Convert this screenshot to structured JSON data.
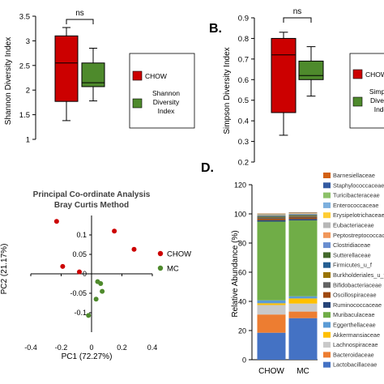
{
  "panel_labels": {
    "b": "B.",
    "d": "D."
  },
  "chart_data": [
    {
      "type": "box",
      "panel": "A",
      "ylabel": "Shannon Diversity Index",
      "ylim": [
        1,
        3.5
      ],
      "yticks": [
        "1",
        "1.5",
        "2",
        "2.5",
        "3",
        "3.5"
      ],
      "significance": "ns",
      "series": [
        {
          "name": "CHOW",
          "color": "#cc0000",
          "min": 1.38,
          "q1": 1.77,
          "median": 2.55,
          "q3": 3.1,
          "max": 3.27
        },
        {
          "name": "Shannon Diversity Index",
          "color": "#4e8a2c",
          "min": 1.78,
          "q1": 2.07,
          "median": 2.15,
          "q3": 2.55,
          "max": 2.85
        }
      ],
      "legend": [
        "CHOW",
        "Shannon",
        "Diversity",
        "Index"
      ]
    },
    {
      "type": "box",
      "panel": "B",
      "ylabel": "Simpson Diversity Index",
      "ylim": [
        0.2,
        0.9
      ],
      "yticks": [
        "0.2",
        "0.3",
        "0.4",
        "0.5",
        "0.6",
        "0.7",
        "0.8",
        "0.9"
      ],
      "significance": "ns",
      "series": [
        {
          "name": "CHOW",
          "color": "#cc0000",
          "min": 0.33,
          "q1": 0.44,
          "median": 0.72,
          "q3": 0.8,
          "max": 0.83
        },
        {
          "name": "Simpson Diversity Index",
          "color": "#4e8a2c",
          "min": 0.52,
          "q1": 0.6,
          "median": 0.62,
          "q3": 0.69,
          "max": 0.76
        }
      ],
      "legend": [
        "CHOW",
        "Simpso",
        "Diversi",
        "Inde"
      ]
    },
    {
      "type": "scatter",
      "panel": "C",
      "title": [
        "Principal Co-ordinate Analysis",
        "Bray Curtis Method"
      ],
      "xlabel": "PC1 (72.27%)",
      "ylabel": "PC2 (21.17%)",
      "xlim": [
        -0.4,
        0.4
      ],
      "ylim": [
        -0.15,
        0.15
      ],
      "xticks": [
        "-0.4",
        "-0.2",
        "0",
        "0.2",
        "0.4"
      ],
      "yticks": [
        "-0.1",
        "-0.05",
        "0",
        "0.05",
        "0.1"
      ],
      "series": [
        {
          "name": "CHOW",
          "color": "#cc0000",
          "points": [
            [
              -0.23,
              0.135
            ],
            [
              0.15,
              0.11
            ],
            [
              0.28,
              0.063
            ],
            [
              -0.19,
              0.019
            ],
            [
              -0.08,
              0.005
            ]
          ]
        },
        {
          "name": "MC",
          "color": "#4e8a2c",
          "points": [
            [
              0.04,
              -0.02
            ],
            [
              0.06,
              -0.025
            ],
            [
              0.07,
              -0.045
            ],
            [
              0.03,
              -0.065
            ],
            [
              -0.02,
              -0.107
            ]
          ]
        }
      ]
    },
    {
      "type": "stacked_bar",
      "panel": "D",
      "ylabel": "Relative Abundance (%)",
      "ylim": [
        0,
        120
      ],
      "yticks": [
        "0",
        "20",
        "40",
        "60",
        "80",
        "100",
        "120"
      ],
      "categories": [
        "CHOW",
        "MC"
      ],
      "series": [
        {
          "name": "Lactobacillaceae",
          "color": "#4472c4",
          "values": [
            18.5,
            28.5
          ]
        },
        {
          "name": "Bacteroidaceae",
          "color": "#ed7d31",
          "values": [
            12.5,
            4.5
          ]
        },
        {
          "name": "Lachnospiraceae",
          "color": "#c9c9c9",
          "values": [
            6.5,
            5.5
          ]
        },
        {
          "name": "Akkermansiaceae",
          "color": "#ffc000",
          "values": [
            1.2,
            3.5
          ]
        },
        {
          "name": "Eggerthellaceae",
          "color": "#5b9bd5",
          "values": [
            2,
            1.5
          ]
        },
        {
          "name": "Muribaculaceae",
          "color": "#70ad47",
          "values": [
            54,
            52
          ]
        },
        {
          "name": "Ruminococcaceae",
          "color": "#264478",
          "values": [
            1,
            1
          ]
        },
        {
          "name": "Oscillospiraceae",
          "color": "#9e480e",
          "values": [
            1,
            1
          ]
        },
        {
          "name": "Bifidobacteriaceae",
          "color": "#636363",
          "values": [
            0.8,
            0.8
          ]
        },
        {
          "name": "Burkholderiales_u_f",
          "color": "#997300",
          "values": [
            0.5,
            0.5
          ]
        },
        {
          "name": "Firmicutes_u_f",
          "color": "#255e91",
          "values": [
            0.5,
            0.5
          ]
        },
        {
          "name": "Sutterellaceae",
          "color": "#43682b",
          "values": [
            0.3,
            0.3
          ]
        },
        {
          "name": "Clostridiaceae",
          "color": "#698ed0",
          "values": [
            0.3,
            0.3
          ]
        },
        {
          "name": "Peptostreptococcaceae",
          "color": "#f1975a",
          "values": [
            0.3,
            0.3
          ]
        },
        {
          "name": "Eubacteriaceae",
          "color": "#b7b7b7",
          "values": [
            0.2,
            0.2
          ]
        },
        {
          "name": "Erysipelotrichaceae",
          "color": "#ffcd33",
          "values": [
            0.2,
            0.2
          ]
        },
        {
          "name": "Enterococcaceae",
          "color": "#7cafdd",
          "values": [
            0.1,
            0.1
          ]
        },
        {
          "name": "Turicibacteraceae",
          "color": "#8cc168",
          "values": [
            0.1,
            0.1
          ]
        },
        {
          "name": "Staphylococcaceae",
          "color": "#335aa1",
          "values": [
            0.1,
            0.1
          ]
        },
        {
          "name": "Barnesiellaceae",
          "color": "#d26012",
          "values": [
            0.1,
            0.1
          ]
        }
      ]
    }
  ]
}
